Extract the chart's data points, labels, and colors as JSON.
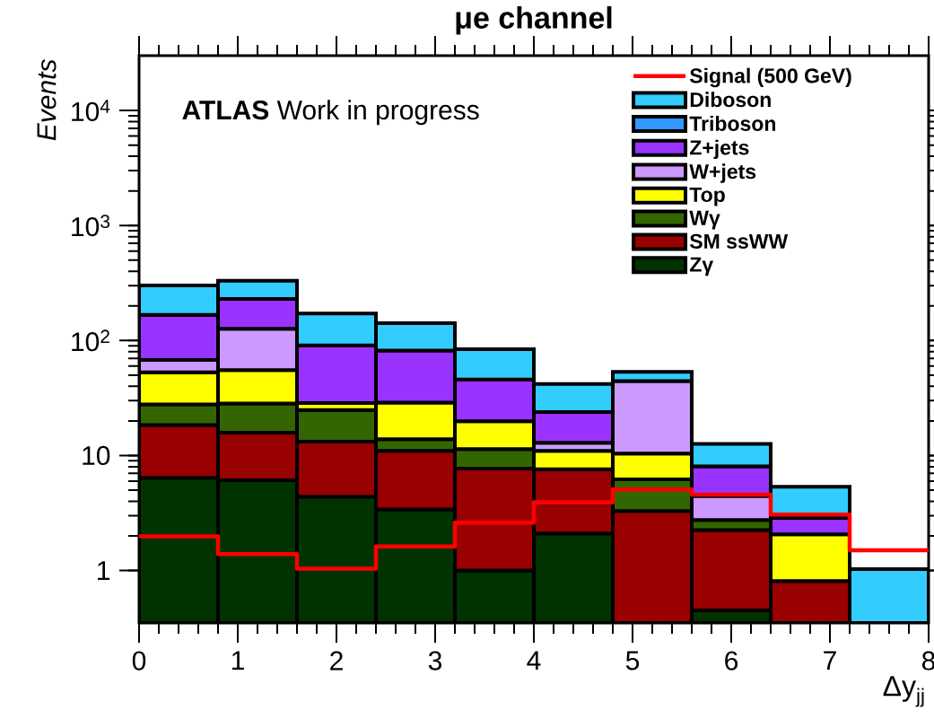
{
  "chart_data": {
    "type": "bar",
    "title": "μe channel",
    "xlabel": "Δy$_{jj}$",
    "ylabel": "Events",
    "annotations": [
      "**ATLAS** Work in progress"
    ],
    "x": [
      0.4,
      1.2,
      2.0,
      2.8,
      3.6,
      4.4,
      5.2,
      6.0,
      6.8,
      7.6
    ],
    "stacked": true,
    "log": "y",
    "legend": "top right",
    "xlim": [
      0,
      8
    ],
    "xticks": [
      0,
      1,
      2,
      3,
      4,
      5,
      6,
      7,
      8
    ],
    "ylim": [
      0.35,
      30000
    ],
    "yticks": [
      1,
      10,
      {
        "value": 100,
        "label": "10$^{2}$"
      },
      {
        "value": 1000,
        "label": "10$^{3}$"
      },
      {
        "value": 10000,
        "label": "10$^{4}$"
      }
    ],
    "series": [
      {
        "name": "Zγ",
        "color": "#003300",
        "values": [
          6.4,
          6.1,
          4.4,
          3.4,
          1.0,
          2.1,
          null,
          0.45,
          null,
          null
        ]
      },
      {
        "name": "SM ssWW",
        "color": "#990000",
        "values": [
          12,
          9.7,
          8.8,
          7.6,
          6.7,
          5.5,
          3.3,
          1.8,
          0.81,
          null
        ]
      },
      {
        "name": "Wγ",
        "color": "#336600",
        "values": [
          9.5,
          12.6,
          11.7,
          2.9,
          3.7,
          null,
          2.9,
          0.5,
          null,
          null
        ]
      },
      {
        "name": "Top",
        "color": "#ffff00",
        "values": [
          25,
          27,
          3.7,
          15,
          8.5,
          3.4,
          4.2,
          null,
          1.25,
          null
        ]
      },
      {
        "name": "W+jets",
        "color": "#cc99ff",
        "values": [
          15,
          71,
          null,
          null,
          null,
          1.9,
          34,
          1.7,
          null,
          null
        ]
      },
      {
        "name": "Z+jets",
        "color": "#9933ff",
        "values": [
          99,
          104,
          62,
          53,
          26,
          11,
          null,
          3.6,
          0.8,
          null
        ]
      },
      {
        "name": "Triboson",
        "color": "#3399ff",
        "values": [
          null,
          null,
          null,
          null,
          null,
          null,
          null,
          null,
          null,
          null
        ]
      },
      {
        "name": "Diboson",
        "color": "#33ccff",
        "values": [
          135,
          100,
          81,
          60,
          38,
          18,
          9,
          4.6,
          2.5,
          1.03
        ]
      },
      {
        "name": "Signal (500 GeV)",
        "type": "step",
        "color": "#ff0000",
        "x": [
          0,
          0.8,
          1.6,
          2.4,
          3.2,
          4.0,
          4.8,
          5.6,
          6.4,
          7.2,
          8.0
        ],
        "values": [
          1.98,
          1.39,
          1.04,
          1.62,
          2.61,
          3.92,
          5.06,
          4.57,
          3.07,
          1.5,
          1.5
        ]
      }
    ]
  }
}
